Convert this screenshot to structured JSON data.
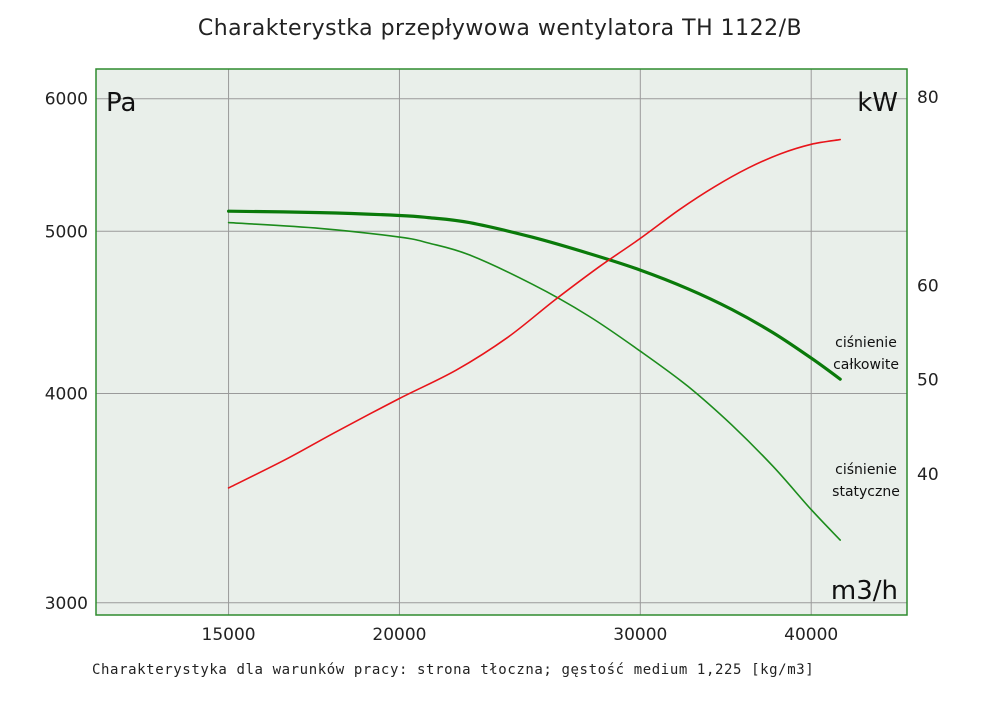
{
  "chart_data": {
    "type": "line",
    "title": "Charakterystka przepływowa wentylatora TH 1122/B",
    "footer": "Charakterystyka dla warunków pracy: strona tłoczna; gęstość medium 1,225 [kg/m3]",
    "x_unit_label": "m3/h",
    "y_left_unit_label": "Pa",
    "y_right_unit_label": "kW",
    "x_scale": "log",
    "y_left_scale": "log",
    "xlim": [
      12000,
      47000
    ],
    "ylim_left": [
      2950,
      6250
    ],
    "ylim_right": [
      25,
      83
    ],
    "x_ticks": [
      15000,
      20000,
      30000,
      40000
    ],
    "x_tick_labels": [
      "15000",
      "20000",
      "30000",
      "40000"
    ],
    "y_left_ticks": [
      3000,
      4000,
      5000,
      6000
    ],
    "y_left_tick_labels": [
      "3000",
      "4000",
      "5000",
      "6000"
    ],
    "y_right_ticks": [
      40,
      50,
      60,
      80
    ],
    "y_right_tick_labels": [
      "40",
      "50",
      "60",
      "80"
    ],
    "grid": true,
    "colors": {
      "plot_background": "#e9efea",
      "frame": "#2e8b2e",
      "grid": "#9a9a9a",
      "total_pressure": "#0a7a0a",
      "static_pressure": "#1c8c1c",
      "power": "#e8141a"
    },
    "annotations": {
      "total_pressure_line1": "ciśnienie",
      "total_pressure_line2": "całkowite",
      "static_pressure_line1": "ciśnienie",
      "static_pressure_line2": "statyczne"
    },
    "series": [
      {
        "name": "ciśnienie całkowite",
        "axis": "left",
        "x": [
          15000,
          17500,
          20000,
          21000,
          22500,
          25000,
          27500,
          30000,
          32500,
          35000,
          37500,
          40000,
          42000
        ],
        "values": [
          5140,
          5130,
          5110,
          5095,
          5060,
          4960,
          4850,
          4740,
          4620,
          4490,
          4350,
          4200,
          4080
        ]
      },
      {
        "name": "ciśnienie statyczne",
        "axis": "left",
        "x": [
          15000,
          17500,
          20000,
          21000,
          22500,
          25000,
          27500,
          30000,
          32500,
          35000,
          37500,
          40000,
          42000
        ],
        "values": [
          5060,
          5020,
          4960,
          4920,
          4840,
          4650,
          4450,
          4240,
          4040,
          3830,
          3620,
          3410,
          3270
        ]
      },
      {
        "axis": "right",
        "x": [
          15000,
          16500,
          18000,
          20000,
          22000,
          24000,
          26000,
          28000,
          30000,
          32000,
          34000,
          36000,
          38000,
          40000,
          42000
        ],
        "values": [
          38.5,
          41.5,
          44.5,
          48.0,
          51.0,
          54.5,
          58.5,
          62.0,
          65.0,
          68.0,
          70.5,
          72.5,
          74.0,
          75.0,
          75.5
        ]
      }
    ]
  }
}
